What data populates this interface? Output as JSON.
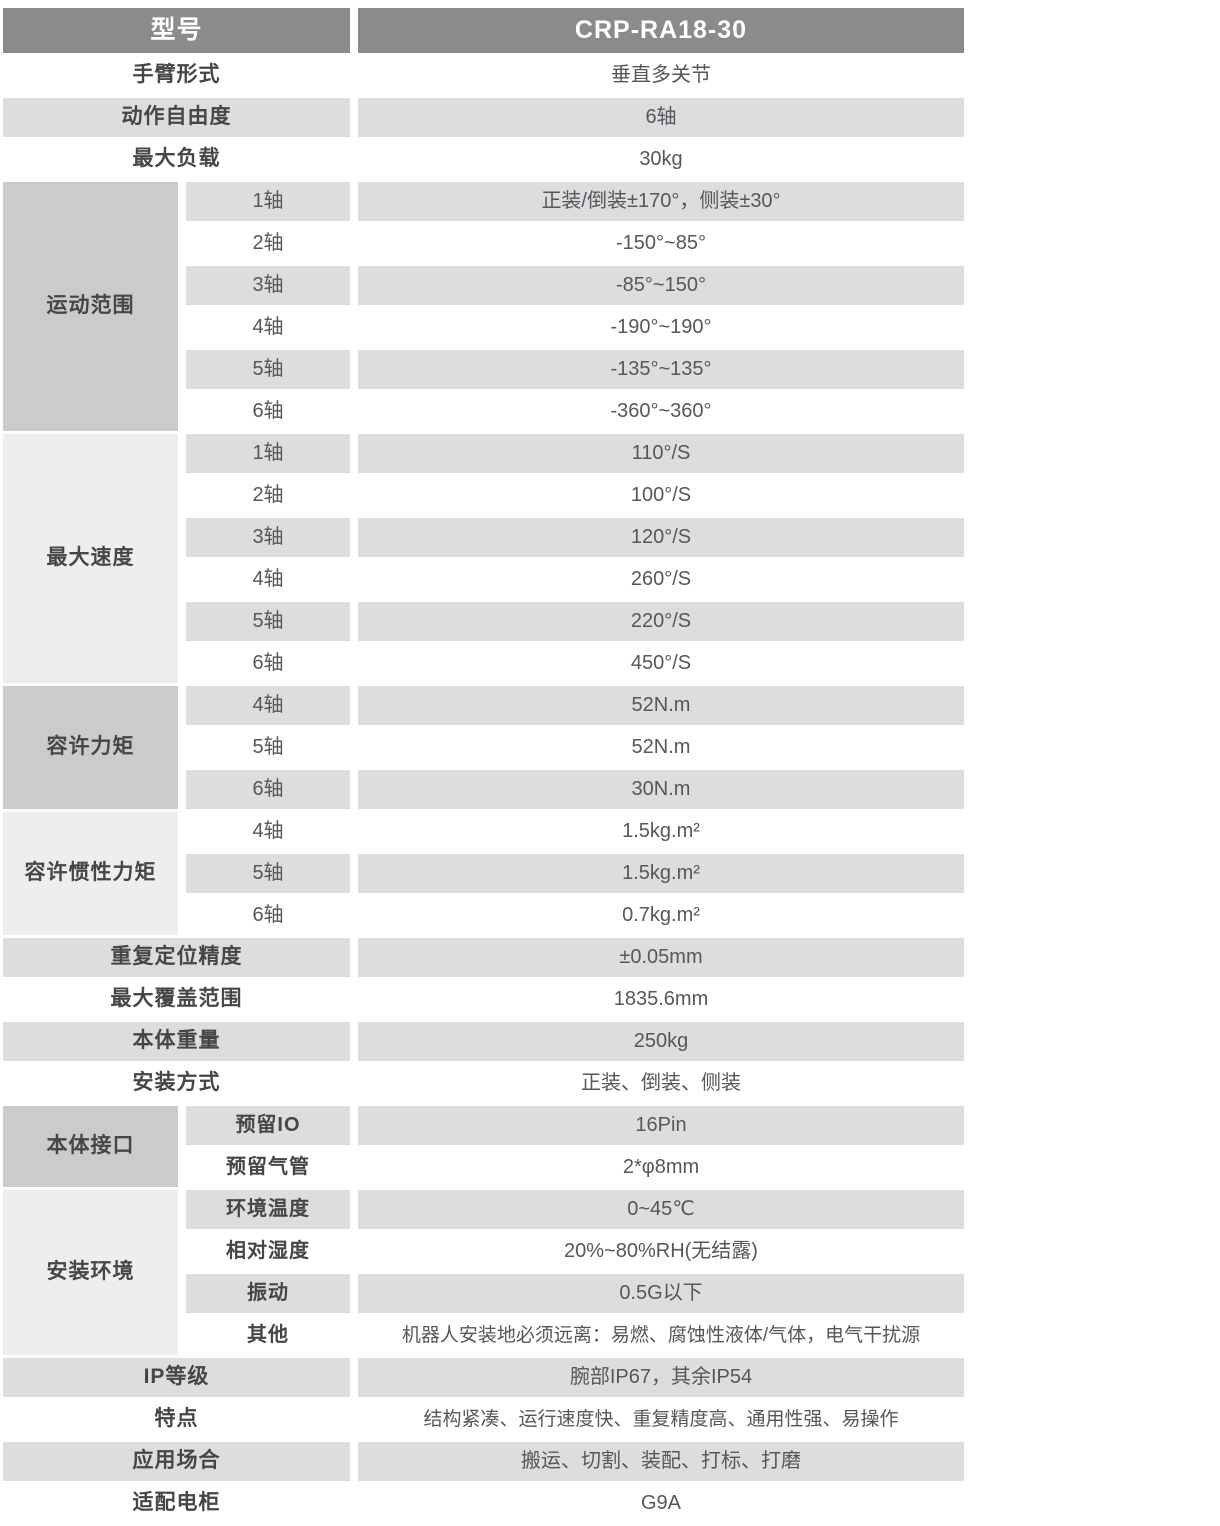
{
  "header": {
    "model_label": "型号",
    "model_value": "CRP-RA18-30"
  },
  "rows": [
    {
      "type": "single",
      "label": "手臂形式",
      "value": "垂直多关节"
    },
    {
      "type": "single",
      "label": "动作自由度",
      "value": "6轴"
    },
    {
      "type": "single",
      "label": "最大负载",
      "value": "30kg"
    },
    {
      "type": "group",
      "label": "运动范围",
      "sub_bold": false,
      "items": [
        {
          "label": "1轴",
          "value": "正装/倒装±170°，侧装±30°"
        },
        {
          "label": "2轴",
          "value": "-150°~85°"
        },
        {
          "label": "3轴",
          "value": "-85°~150°"
        },
        {
          "label": "4轴",
          "value": "-190°~190°"
        },
        {
          "label": "5轴",
          "value": "-135°~135°"
        },
        {
          "label": "6轴",
          "value": "-360°~360°"
        }
      ]
    },
    {
      "type": "group",
      "label": "最大速度",
      "sub_bold": false,
      "items": [
        {
          "label": "1轴",
          "value": "110°/S"
        },
        {
          "label": "2轴",
          "value": "100°/S"
        },
        {
          "label": "3轴",
          "value": "120°/S"
        },
        {
          "label": "4轴",
          "value": "260°/S"
        },
        {
          "label": "5轴",
          "value": "220°/S"
        },
        {
          "label": "6轴",
          "value": "450°/S"
        }
      ]
    },
    {
      "type": "group",
      "label": "容许力矩",
      "sub_bold": false,
      "items": [
        {
          "label": "4轴",
          "value": "52N.m"
        },
        {
          "label": "5轴",
          "value": "52N.m"
        },
        {
          "label": "6轴",
          "value": "30N.m"
        }
      ]
    },
    {
      "type": "group",
      "label": "容许惯性力矩",
      "sub_bold": false,
      "items": [
        {
          "label": "4轴",
          "value": "1.5kg.m²"
        },
        {
          "label": "5轴",
          "value": "1.5kg.m²"
        },
        {
          "label": "6轴",
          "value": "0.7kg.m²"
        }
      ]
    },
    {
      "type": "single",
      "label": "重复定位精度",
      "value": "±0.05mm"
    },
    {
      "type": "single",
      "label": "最大覆盖范围",
      "value": "1835.6mm"
    },
    {
      "type": "single",
      "label": "本体重量",
      "value": "250kg"
    },
    {
      "type": "single",
      "label": "安装方式",
      "value": "正装、倒装、侧装"
    },
    {
      "type": "group",
      "label": "本体接口",
      "sub_bold": true,
      "items": [
        {
          "label": "预留IO",
          "value": "16Pin"
        },
        {
          "label": "预留气管",
          "value": "2*φ8mm"
        }
      ]
    },
    {
      "type": "group",
      "label": "安装环境",
      "sub_bold": true,
      "items": [
        {
          "label": "环境温度",
          "value": "0~45℃"
        },
        {
          "label": "相对湿度",
          "value": "20%~80%RH(无结露)"
        },
        {
          "label": "振动",
          "value": "0.5G以下"
        },
        {
          "label": "其他",
          "value": "机器人安装地必须远离：易燃、腐蚀性液体/气体，电气干扰源"
        }
      ]
    },
    {
      "type": "single",
      "label": "IP等级",
      "value": "腕部IP67，其余IP54"
    },
    {
      "type": "single",
      "label": "特点",
      "value": "结构紧凑、运行速度快、重复精度高、通用性强、易操作"
    },
    {
      "type": "single",
      "label": "应用场合",
      "value": "搬运、切割、装配、打标、打磨"
    },
    {
      "type": "single",
      "label": "适配电柜",
      "value": "G9A"
    }
  ],
  "colors": {
    "header_bg": "#8a8b8d",
    "header_text": "#ffffff",
    "group_dark": "#cacbcd",
    "group_light": "#eeeeef",
    "stripe_gray": "#dcddde",
    "stripe_white": "#ffffff",
    "label_text": "#454648",
    "value_text": "#56575a"
  }
}
